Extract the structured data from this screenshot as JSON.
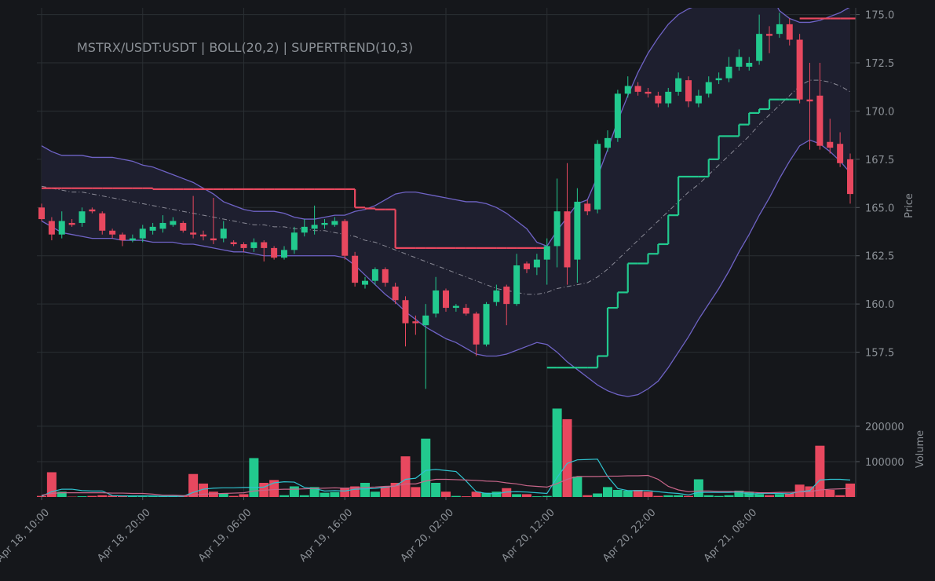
{
  "chart_data": [
    {
      "type": "candlestick",
      "title": "MSTRX/USDT:USDT | BOLL(20,2) | SUPERTREND(10,3)",
      "ylabel": "Price",
      "categories": [
        "Apr 18, 10:00",
        null,
        null,
        null,
        null,
        null,
        null,
        null,
        null,
        null,
        "Apr 18, 20:00",
        null,
        null,
        null,
        null,
        null,
        null,
        null,
        null,
        null,
        "Apr 19, 06:00",
        null,
        null,
        null,
        null,
        null,
        null,
        null,
        null,
        null,
        "Apr 19, 16:00",
        null,
        null,
        null,
        null,
        null,
        null,
        null,
        null,
        null,
        "Apr 20, 02:00",
        null,
        null,
        null,
        null,
        null,
        null,
        null,
        null,
        null,
        "Apr 20, 12:00",
        null,
        null,
        null,
        null,
        null,
        null,
        null,
        null,
        null,
        "Apr 20, 22:00",
        null,
        null,
        null,
        null,
        null,
        null,
        null,
        null,
        null,
        "Apr 21, 08:00",
        null,
        null,
        null,
        null,
        null,
        null,
        null,
        null,
        null,
        null
      ],
      "open": [
        165.0,
        164.3,
        163.6,
        164.2,
        164.2,
        164.9,
        164.7,
        163.8,
        163.6,
        163.3,
        163.4,
        163.8,
        163.9,
        164.1,
        164.2,
        163.7,
        163.6,
        163.4,
        163.4,
        163.2,
        163.1,
        162.9,
        163.2,
        162.9,
        162.4,
        162.8,
        163.7,
        163.9,
        164.1,
        164.1,
        164.3,
        162.5,
        161.0,
        161.2,
        161.8,
        160.9,
        160.2,
        159.1,
        158.9,
        159.5,
        160.7,
        159.8,
        159.8,
        159.5,
        157.9,
        160.1,
        160.9,
        160.0,
        162.1,
        161.9,
        162.3,
        163.0,
        164.8,
        162.3,
        165.2,
        164.9,
        168.1,
        168.6,
        170.9,
        171.3,
        171.0,
        170.8,
        170.4,
        171.0,
        171.6,
        170.4,
        170.9,
        171.6,
        171.7,
        172.3,
        172.3,
        172.6,
        174.0,
        174.0,
        174.5,
        173.7,
        170.6,
        170.8,
        168.4,
        168.3,
        167.5
      ],
      "high": [
        165.2,
        164.5,
        164.8,
        164.4,
        165.0,
        165.0,
        164.8,
        163.9,
        163.7,
        163.6,
        164.1,
        164.2,
        164.6,
        164.5,
        164.3,
        165.6,
        163.8,
        165.5,
        164.3,
        163.3,
        163.2,
        163.4,
        163.3,
        163.0,
        163.0,
        164.0,
        164.4,
        165.1,
        164.4,
        164.5,
        164.4,
        162.7,
        161.4,
        161.9,
        161.9,
        161.1,
        160.4,
        159.4,
        160.0,
        161.4,
        160.8,
        160.0,
        160.0,
        159.6,
        160.1,
        161.0,
        161.0,
        162.6,
        162.2,
        162.6,
        163.4,
        166.5,
        167.3,
        166.0,
        165.4,
        168.5,
        169.0,
        171.1,
        171.8,
        171.5,
        171.2,
        171.0,
        171.2,
        172.0,
        171.8,
        171.1,
        171.8,
        172.0,
        172.8,
        173.2,
        172.8,
        175.0,
        174.4,
        175.1,
        174.8,
        174.0,
        172.5,
        172.5,
        169.6,
        168.9,
        167.8
      ],
      "low": [
        164.3,
        163.3,
        163.4,
        164.0,
        164.0,
        164.7,
        163.6,
        163.4,
        163.0,
        163.2,
        163.2,
        163.6,
        163.7,
        164.0,
        163.7,
        163.4,
        163.3,
        163.1,
        163.2,
        163.0,
        162.7,
        162.7,
        162.2,
        162.3,
        162.3,
        162.6,
        163.5,
        163.6,
        163.9,
        164.0,
        162.3,
        160.9,
        160.8,
        161.0,
        160.9,
        160.0,
        157.8,
        158.4,
        155.6,
        159.3,
        159.6,
        159.6,
        159.4,
        157.3,
        157.8,
        159.9,
        158.9,
        159.9,
        161.6,
        161.5,
        161.0,
        161.9,
        161.0,
        161.1,
        164.6,
        164.7,
        167.9,
        168.4,
        170.7,
        170.8,
        170.7,
        170.2,
        170.2,
        170.8,
        170.2,
        170.2,
        170.7,
        171.4,
        171.5,
        172.1,
        172.1,
        172.4,
        173.0,
        173.8,
        173.4,
        170.4,
        168.0,
        168.0,
        167.8,
        167.1,
        165.2
      ],
      "close": [
        164.4,
        163.6,
        164.3,
        164.1,
        164.8,
        164.8,
        163.8,
        163.6,
        163.3,
        163.4,
        163.9,
        164.0,
        164.2,
        164.3,
        163.8,
        163.6,
        163.5,
        163.3,
        163.9,
        163.1,
        162.9,
        163.2,
        162.9,
        162.4,
        162.8,
        163.7,
        164.0,
        164.1,
        164.2,
        164.3,
        162.5,
        161.1,
        161.2,
        161.8,
        161.1,
        160.2,
        159.0,
        159.0,
        159.4,
        160.7,
        159.8,
        159.9,
        159.5,
        157.9,
        160.0,
        160.7,
        160.0,
        162.0,
        161.8,
        162.3,
        163.0,
        164.8,
        161.9,
        165.3,
        164.8,
        168.3,
        168.6,
        170.9,
        171.3,
        171.0,
        170.9,
        170.4,
        171.0,
        171.7,
        170.5,
        170.8,
        171.5,
        171.7,
        172.3,
        172.8,
        172.5,
        174.0,
        173.9,
        174.5,
        173.7,
        170.6,
        170.5,
        168.2,
        168.1,
        167.3,
        165.7
      ],
      "up_color": "#22c98e",
      "down_color": "#e8485f",
      "bollinger": {
        "color": "#6f63c6",
        "middle_color": "#8a8a96",
        "fill": "#1e1f2f",
        "upper": [
          168.2,
          167.9,
          167.7,
          167.7,
          167.7,
          167.6,
          167.6,
          167.6,
          167.5,
          167.4,
          167.2,
          167.1,
          166.9,
          166.7,
          166.5,
          166.3,
          166.0,
          165.7,
          165.3,
          165.1,
          164.9,
          164.8,
          164.8,
          164.8,
          164.7,
          164.5,
          164.4,
          164.4,
          164.5,
          164.6,
          164.6,
          164.8,
          164.9,
          165.1,
          165.4,
          165.7,
          165.8,
          165.8,
          165.7,
          165.6,
          165.5,
          165.4,
          165.3,
          165.3,
          165.2,
          165.0,
          164.7,
          164.3,
          163.9,
          163.2,
          163.0,
          163.8,
          164.5,
          165.2,
          165.4,
          166.6,
          168.0,
          169.5,
          170.8,
          172.0,
          173.0,
          173.8,
          174.5,
          175.0,
          175.3,
          175.5,
          175.7,
          175.9,
          176.1,
          176.2,
          176.3,
          176.3,
          176.2,
          175.2,
          174.8,
          174.6,
          174.6,
          174.7,
          174.9,
          175.1,
          175.4
        ],
        "middle": [
          166.1,
          166.0,
          165.9,
          165.8,
          165.8,
          165.7,
          165.6,
          165.5,
          165.4,
          165.3,
          165.2,
          165.1,
          165.0,
          164.9,
          164.8,
          164.7,
          164.6,
          164.5,
          164.4,
          164.3,
          164.2,
          164.1,
          164.1,
          164.0,
          164.0,
          163.9,
          163.9,
          163.8,
          163.8,
          163.7,
          163.6,
          163.5,
          163.3,
          163.2,
          163.0,
          162.8,
          162.6,
          162.4,
          162.2,
          162.0,
          161.8,
          161.6,
          161.4,
          161.2,
          161.0,
          160.8,
          160.7,
          160.6,
          160.5,
          160.5,
          160.6,
          160.8,
          160.9,
          161.0,
          161.1,
          161.4,
          161.8,
          162.3,
          162.8,
          163.3,
          163.8,
          164.3,
          164.8,
          165.3,
          165.8,
          166.2,
          166.7,
          167.2,
          167.7,
          168.2,
          168.7,
          169.3,
          169.8,
          170.3,
          170.8,
          171.3,
          171.6,
          171.6,
          171.5,
          171.3,
          171.0
        ],
        "lower": [
          164.3,
          164.0,
          163.7,
          163.6,
          163.5,
          163.4,
          163.4,
          163.4,
          163.3,
          163.3,
          163.3,
          163.2,
          163.2,
          163.2,
          163.1,
          163.1,
          163.0,
          162.9,
          162.8,
          162.7,
          162.7,
          162.6,
          162.5,
          162.5,
          162.5,
          162.5,
          162.5,
          162.5,
          162.5,
          162.5,
          162.4,
          162.0,
          161.5,
          161.0,
          160.5,
          160.1,
          159.6,
          159.2,
          158.8,
          158.5,
          158.2,
          158.0,
          157.7,
          157.4,
          157.3,
          157.3,
          157.4,
          157.6,
          157.8,
          158.0,
          157.9,
          157.5,
          157.0,
          156.6,
          156.2,
          155.8,
          155.5,
          155.3,
          155.2,
          155.3,
          155.6,
          156.0,
          156.7,
          157.5,
          158.3,
          159.2,
          160.0,
          160.8,
          161.7,
          162.7,
          163.6,
          164.6,
          165.5,
          166.5,
          167.4,
          168.2,
          168.5,
          168.3,
          167.9,
          167.4,
          166.8
        ]
      },
      "supertrend": {
        "up_color": "#22c98e",
        "down_color": "#e8485f",
        "down": [
          166.0,
          166.0,
          166.0,
          166.0,
          166.0,
          166.0,
          166.0,
          166.0,
          166.0,
          166.0,
          166.0,
          165.95,
          165.95,
          165.95,
          165.95,
          165.95,
          165.95,
          165.95,
          165.95,
          165.95,
          165.95,
          165.95,
          165.95,
          165.95,
          165.95,
          165.95,
          165.95,
          165.95,
          165.95,
          165.95,
          165.95,
          165.0,
          164.95,
          164.9,
          164.9,
          162.9,
          162.9,
          162.9,
          162.9,
          162.9,
          162.9,
          162.9,
          162.9,
          162.9,
          162.9,
          162.9,
          162.9,
          162.9,
          162.9,
          162.9,
          null,
          null,
          null,
          null,
          null,
          null,
          null,
          null,
          null,
          null,
          null,
          null,
          null,
          null,
          null,
          null,
          null,
          null,
          null,
          null,
          null,
          null,
          null,
          null,
          null,
          174.8,
          174.8,
          174.8,
          174.8,
          174.8,
          174.8
        ],
        "up": [
          null,
          null,
          null,
          null,
          null,
          null,
          null,
          null,
          null,
          null,
          null,
          null,
          null,
          null,
          null,
          null,
          null,
          null,
          null,
          null,
          null,
          null,
          null,
          null,
          null,
          null,
          null,
          null,
          null,
          null,
          null,
          null,
          null,
          null,
          null,
          null,
          null,
          null,
          null,
          null,
          null,
          null,
          null,
          null,
          null,
          null,
          null,
          null,
          null,
          null,
          156.7,
          156.7,
          156.7,
          156.7,
          156.7,
          157.3,
          159.8,
          160.6,
          162.1,
          162.1,
          162.6,
          163.1,
          164.6,
          166.6,
          166.6,
          166.6,
          167.5,
          168.7,
          168.7,
          169.3,
          169.9,
          170.1,
          170.6,
          170.6,
          170.6,
          null,
          null,
          null,
          null,
          null,
          null
        ]
      },
      "ylim": [
        155.0,
        175.35
      ],
      "yticks": [
        {
          "value": 157.5,
          "label": "157.5"
        },
        {
          "value": 160,
          "label": "160.0"
        },
        {
          "value": 162.5,
          "label": "162.5"
        },
        {
          "value": 165,
          "label": "165.0"
        },
        {
          "value": 167.5,
          "label": "167.5"
        },
        {
          "value": 170,
          "label": "170.0"
        },
        {
          "value": 172.5,
          "label": "172.5"
        },
        {
          "value": 175,
          "label": "175.0"
        }
      ],
      "grid": true
    },
    {
      "type": "bar",
      "ylabel": "Volume",
      "values": [
        3000,
        70000,
        15000,
        1000,
        2000,
        3000,
        5000,
        4000,
        3000,
        3000,
        2000,
        2000,
        2000,
        3000,
        3000,
        65000,
        38000,
        15000,
        10000,
        3000,
        8000,
        110000,
        40000,
        48000,
        5000,
        30000,
        5000,
        28000,
        12000,
        14000,
        25000,
        30000,
        40000,
        15000,
        30000,
        40000,
        115000,
        28000,
        165000,
        40000,
        15000,
        3000,
        2000,
        15000,
        12000,
        15000,
        25000,
        8000,
        8000,
        2000,
        3000,
        250000,
        220000,
        58000,
        5000,
        10000,
        28000,
        20000,
        18000,
        20000,
        15000,
        3000,
        5000,
        5000,
        3000,
        50000,
        5000,
        3000,
        5000,
        18000,
        15000,
        8000,
        5000,
        8000,
        10000,
        35000,
        30000,
        145000,
        20000,
        5000,
        38000
      ],
      "series": [
        {
          "color": "#2fc3cf",
          "values": [
            2000,
            15000,
            22000,
            22000,
            18000,
            17000,
            17000,
            4000,
            3000,
            3000,
            3000,
            3000,
            2000,
            2000,
            2000,
            13000,
            22000,
            25000,
            26000,
            26000,
            27000,
            27000,
            28000,
            40000,
            43000,
            42000,
            27000,
            24000,
            17000,
            18000,
            17000,
            22000,
            23000,
            24000,
            28000,
            31000,
            50000,
            53000,
            75000,
            78000,
            75000,
            72000,
            45000,
            15000,
            10000,
            9000,
            14000,
            15000,
            14000,
            12000,
            10000,
            55000,
            95000,
            105000,
            106000,
            107000,
            58000,
            24000,
            18000,
            18000,
            18000,
            15000,
            12000,
            10000,
            6000,
            13000,
            13000,
            13000,
            13000,
            14000,
            8000,
            10000,
            10000,
            10000,
            9000,
            15000,
            18000,
            48000,
            50000,
            50000,
            48000
          ]
        },
        {
          "color": "#c8668a",
          "values": [
            5000,
            10000,
            12000,
            12000,
            12000,
            12000,
            12000,
            11000,
            11000,
            10000,
            10000,
            8000,
            5000,
            5000,
            4000,
            5000,
            8000,
            9000,
            10000,
            11000,
            12000,
            17000,
            19000,
            21000,
            22000,
            22000,
            23000,
            24000,
            25000,
            26000,
            25000,
            26000,
            27000,
            28000,
            30000,
            31000,
            37000,
            37000,
            45000,
            50000,
            50000,
            49000,
            48000,
            47000,
            45000,
            44000,
            40000,
            37000,
            32000,
            30000,
            28000,
            38000,
            50000,
            58000,
            58000,
            58000,
            59000,
            59000,
            60000,
            60000,
            61000,
            50000,
            30000,
            20000,
            15000,
            17000,
            17000,
            16000,
            16000,
            15000,
            14000,
            12000,
            12000,
            13000,
            13000,
            14000,
            15000,
            20000,
            22000,
            23000,
            24000
          ]
        }
      ],
      "ylim": [
        0,
        262000
      ],
      "yticks": [
        100000,
        200000
      ],
      "grid": true
    }
  ]
}
